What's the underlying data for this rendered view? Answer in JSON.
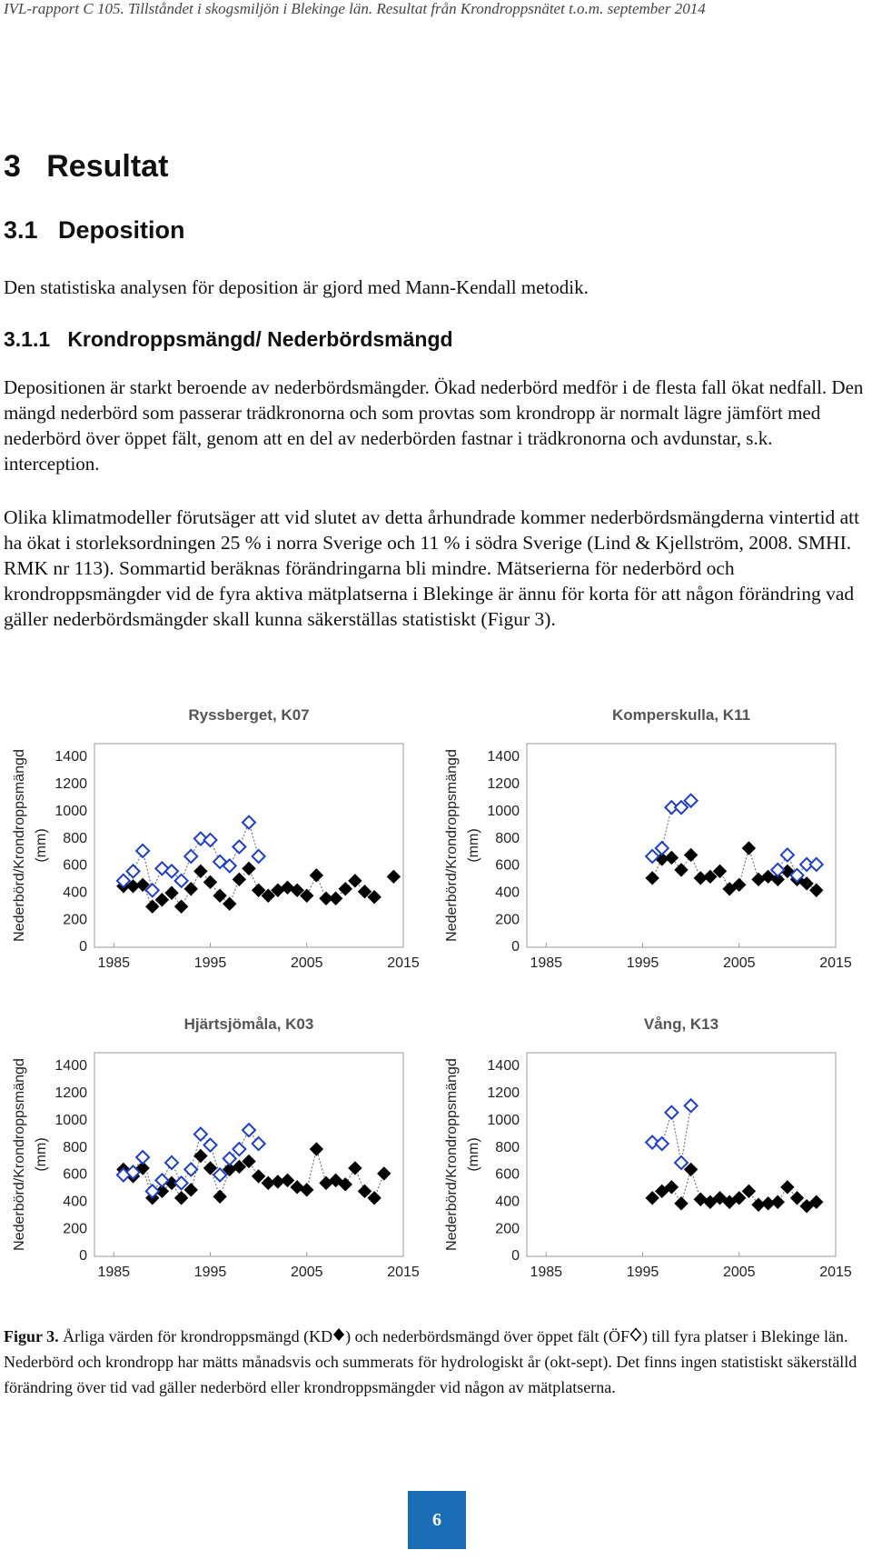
{
  "header": {
    "title": "IVL-rapport C 105. Tillståndet i skogsmiljön i Blekinge län. Resultat från Krondroppsnätet t.o.m. september 2014"
  },
  "headings": {
    "h1": "3   Resultat",
    "h2": "3.1   Deposition",
    "h3": "3.1.1   Krondroppsmängd/ Nederbördsmängd"
  },
  "paragraphs": [
    "Den statistiska analysen för deposition är gjord med Mann-Kendall metodik.",
    "Depositionen är starkt beroende av nederbördsmängder. Ökad nederbörd medför i de flesta fall ökat nedfall. Den mängd nederbörd som passerar trädkronorna och som provtas som krondropp är normalt lägre jämfört med nederbörd över öppet fält, genom att en del av nederbörden fastnar i trädkronorna och avdunstar, s.k. interception.",
    "Olika klimatmodeller förutsäger att vid slutet av detta århundrade kommer nederbördsmängderna vintertid att ha ökat i storleksordningen 25 % i norra Sverige och 11 % i södra Sverige (Lind & Kjellström, 2008. SMHI. RMK nr 113). Sommartid beräknas förändringarna bli mindre. Mätserierna för nederbörd och krondroppsmängder vid de fyra aktiva mätplatserna i Blekinge är ännu för korta för att någon förändring vad gäller nederbördsmängder skall kunna säkerställas statistiskt (Figur 3)."
  ],
  "chart_data": [
    {
      "type": "line",
      "title": "Ryssberget, K07",
      "ylabel": [
        "Nederbörd/Krondroppsmängd",
        "(mm)"
      ],
      "x": [
        1986,
        1987,
        1988,
        1989,
        1990,
        1991,
        1992,
        1993,
        1994,
        1995,
        1996,
        1997,
        1998,
        1999,
        2000,
        2001,
        2002,
        2003,
        2004,
        2005,
        2006,
        2007,
        2008,
        2009,
        2010,
        2011,
        2012,
        2013,
        2014
      ],
      "xlim": [
        1983,
        2015
      ],
      "xticks": [
        1985,
        1995,
        2005,
        2015
      ],
      "ylim": [
        0,
        1500
      ],
      "yticks": [
        0,
        200,
        400,
        600,
        800,
        1000,
        1200,
        1400
      ],
      "grid": false,
      "series": [
        {
          "color": "#000000",
          "marker": "filled",
          "values": [
            450,
            450,
            460,
            300,
            350,
            400,
            300,
            430,
            560,
            480,
            380,
            320,
            500,
            580,
            420,
            380,
            420,
            440,
            420,
            380,
            530,
            360,
            360,
            430,
            490,
            410,
            370,
            null,
            520
          ]
        },
        {
          "color": "#1f3fbf",
          "marker": "open",
          "values": [
            490,
            560,
            710,
            420,
            580,
            560,
            490,
            670,
            800,
            790,
            630,
            600,
            740,
            920,
            670,
            null,
            null,
            null,
            null,
            null,
            null,
            null,
            null,
            null,
            null,
            null,
            null,
            null,
            null
          ]
        }
      ]
    },
    {
      "type": "line",
      "title": "Komperskulla, K11",
      "ylabel": [
        "Nederbörd/Krondroppsmängd",
        "(mm)"
      ],
      "x": [
        1986,
        1987,
        1988,
        1989,
        1990,
        1991,
        1992,
        1993,
        1994,
        1995,
        1996,
        1997,
        1998,
        1999,
        2000,
        2001,
        2002,
        2003,
        2004,
        2005,
        2006,
        2007,
        2008,
        2009,
        2010,
        2011,
        2012,
        2013,
        2014
      ],
      "xlim": [
        1983,
        2015
      ],
      "xticks": [
        1985,
        1995,
        2005,
        2015
      ],
      "ylim": [
        0,
        1500
      ],
      "yticks": [
        0,
        200,
        400,
        600,
        800,
        1000,
        1200,
        1400
      ],
      "grid": false,
      "series": [
        {
          "color": "#000000",
          "marker": "filled",
          "values": [
            null,
            null,
            null,
            null,
            null,
            null,
            null,
            null,
            null,
            null,
            510,
            650,
            660,
            570,
            680,
            510,
            520,
            560,
            430,
            460,
            730,
            500,
            520,
            500,
            560,
            500,
            470,
            420,
            null
          ]
        },
        {
          "color": "#1f3fbf",
          "marker": "open",
          "values": [
            null,
            null,
            null,
            null,
            null,
            null,
            null,
            null,
            null,
            null,
            670,
            730,
            1030,
            1030,
            1080,
            null,
            null,
            null,
            null,
            null,
            null,
            null,
            null,
            570,
            680,
            530,
            610,
            610,
            null
          ]
        }
      ]
    },
    {
      "type": "line",
      "title": "Hjärtsjömåla, K03",
      "ylabel": [
        "Nederbörd/Krondroppsmängd",
        "(mm)"
      ],
      "x": [
        1986,
        1987,
        1988,
        1989,
        1990,
        1991,
        1992,
        1993,
        1994,
        1995,
        1996,
        1997,
        1998,
        1999,
        2000,
        2001,
        2002,
        2003,
        2004,
        2005,
        2006,
        2007,
        2008,
        2009,
        2010,
        2011,
        2012,
        2013,
        2014
      ],
      "xlim": [
        1983,
        2015
      ],
      "xticks": [
        1985,
        1995,
        2005,
        2015
      ],
      "ylim": [
        0,
        1500
      ],
      "yticks": [
        0,
        200,
        400,
        600,
        800,
        1000,
        1200,
        1400
      ],
      "grid": false,
      "series": [
        {
          "color": "#000000",
          "marker": "filled",
          "values": [
            640,
            590,
            650,
            430,
            480,
            540,
            430,
            490,
            740,
            650,
            440,
            640,
            660,
            700,
            590,
            540,
            550,
            560,
            510,
            490,
            790,
            540,
            560,
            530,
            650,
            480,
            430,
            610,
            null
          ]
        },
        {
          "color": "#1f3fbf",
          "marker": "open",
          "values": [
            600,
            620,
            730,
            480,
            560,
            690,
            540,
            640,
            900,
            820,
            600,
            720,
            790,
            930,
            830,
            null,
            null,
            null,
            null,
            null,
            null,
            null,
            null,
            null,
            null,
            null,
            null,
            null,
            null
          ]
        }
      ]
    },
    {
      "type": "line",
      "title": "Vång, K13",
      "ylabel": [
        "Nederbörd/Krondroppsmängd",
        "(mm)"
      ],
      "x": [
        1986,
        1987,
        1988,
        1989,
        1990,
        1991,
        1992,
        1993,
        1994,
        1995,
        1996,
        1997,
        1998,
        1999,
        2000,
        2001,
        2002,
        2003,
        2004,
        2005,
        2006,
        2007,
        2008,
        2009,
        2010,
        2011,
        2012,
        2013,
        2014
      ],
      "xlim": [
        1983,
        2015
      ],
      "xticks": [
        1985,
        1995,
        2005,
        2015
      ],
      "ylim": [
        0,
        1500
      ],
      "yticks": [
        0,
        200,
        400,
        600,
        800,
        1000,
        1200,
        1400
      ],
      "grid": false,
      "series": [
        {
          "color": "#000000",
          "marker": "filled",
          "values": [
            null,
            null,
            null,
            null,
            null,
            null,
            null,
            null,
            null,
            null,
            430,
            480,
            510,
            390,
            640,
            420,
            400,
            430,
            400,
            430,
            480,
            380,
            390,
            400,
            510,
            430,
            370,
            400,
            null
          ]
        },
        {
          "color": "#1f3fbf",
          "marker": "open",
          "values": [
            null,
            null,
            null,
            null,
            null,
            null,
            null,
            null,
            null,
            null,
            840,
            830,
            1060,
            690,
            1110,
            null,
            null,
            null,
            null,
            null,
            null,
            null,
            null,
            null,
            null,
            null,
            null,
            null,
            null
          ]
        }
      ]
    }
  ],
  "caption": {
    "label": "Figur 3.",
    "text_1": "Årliga värden för krondroppsmängd (KD",
    "text_2": ") och nederbördsmängd över öppet fält (ÖF",
    "text_3": ") till fyra platser i Blekinge län. Nederbörd och krondropp har mätts månadsvis och summerats för hydrologiskt år (okt-sept). Det finns ingen statistiskt säkerställd förändring över tid vad gäller nederbörd eller krondroppsmängder vid någon av mätplatserna."
  },
  "page_number": "6"
}
